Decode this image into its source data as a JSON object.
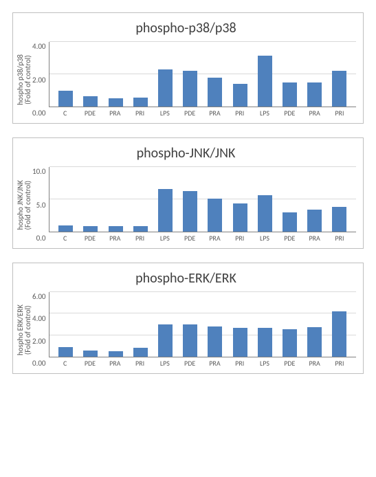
{
  "categories": [
    "C",
    "PDE",
    "PRA",
    "PRI",
    "LPS",
    "PDE",
    "PRA",
    "PRI",
    "LPS",
    "PDE",
    "PRA",
    "PRI"
  ],
  "bar_color": "#4f81bd",
  "grid_color": "#d9d9d9",
  "axis_color": "#808080",
  "tick_color": "#595959",
  "title_color": "#404040",
  "title_fontsize": 20,
  "tick_fontsize": 11,
  "xtick_fontsize": 10,
  "charts": [
    {
      "title": "phospho-p38/p38",
      "ylabel1": "hospho p38/p38",
      "ylabel2": "(Fold of control)",
      "ymax": 4.0,
      "ytick_step": 2.0,
      "ytick_decimals": 2,
      "values": [
        1.0,
        0.65,
        0.5,
        0.55,
        2.3,
        2.2,
        1.8,
        1.4,
        3.15,
        1.5,
        1.5,
        2.2
      ]
    },
    {
      "title": "phospho-JNK/JNK",
      "ylabel1": "hospho JNK/JNK",
      "ylabel2": "(Fold of control)",
      "ymax": 10.0,
      "ytick_step": 5.0,
      "ytick_decimals": 1,
      "values": [
        1.0,
        0.8,
        0.8,
        0.9,
        6.6,
        6.3,
        5.1,
        4.4,
        5.6,
        3.0,
        3.4,
        3.8
      ]
    },
    {
      "title": "phospho-ERK/ERK",
      "ylabel1": "hospho ERK/ERK",
      "ylabel2": "(Fold of control)",
      "ymax": 6.0,
      "ytick_step": 2.0,
      "ytick_decimals": 2,
      "values": [
        0.9,
        0.6,
        0.5,
        0.8,
        3.0,
        3.0,
        2.8,
        2.65,
        2.7,
        2.55,
        2.75,
        4.2
      ]
    }
  ]
}
